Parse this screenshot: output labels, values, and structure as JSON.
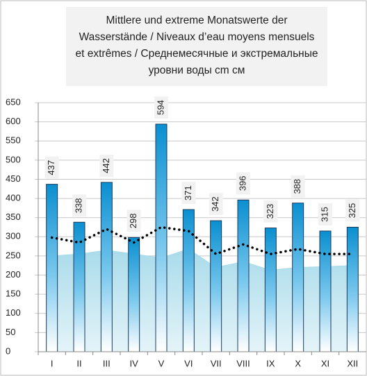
{
  "chart_data": {
    "type": "bar",
    "title": "Mittlere und extreme Monatswerte der Wasserstände / Niveaux d’eau moyens mensuels et extrêmes / Среднемесячные и экстремальные уровни воды cm см",
    "categories": [
      "I",
      "II",
      "III",
      "IV",
      "V",
      "VI",
      "VII",
      "VIII",
      "IX",
      "X",
      "XI",
      "XII"
    ],
    "series": [
      {
        "type": "area",
        "color": "#a9dbea",
        "values": [
          250,
          255,
          265,
          255,
          245,
          268,
          220,
          235,
          213,
          220,
          222,
          225
        ]
      },
      {
        "type": "bar",
        "color": "#0a8fd0",
        "values": [
          437,
          338,
          442,
          298,
          594,
          371,
          342,
          396,
          323,
          388,
          315,
          325
        ]
      },
      {
        "type": "line",
        "color": "#000000",
        "values": [
          298,
          285,
          320,
          285,
          325,
          315,
          255,
          280,
          255,
          268,
          255,
          255
        ]
      }
    ],
    "ylim": [
      0,
      650
    ],
    "yticks": [
      0,
      50,
      100,
      150,
      200,
      250,
      300,
      350,
      400,
      450,
      500,
      550,
      600,
      650
    ],
    "grid": true
  }
}
